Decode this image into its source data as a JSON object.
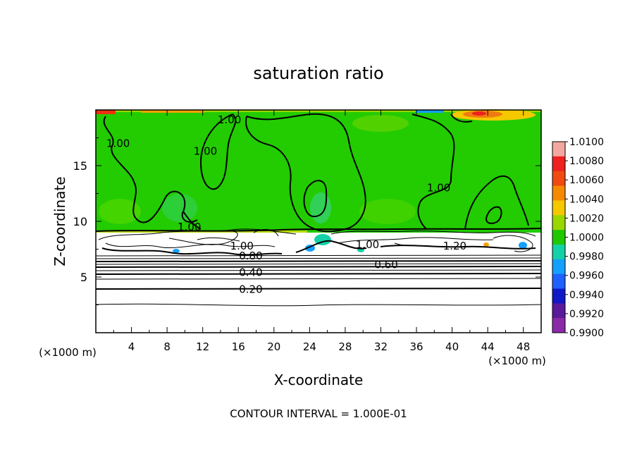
{
  "chart_data": {
    "type": "heatmap",
    "title": "saturation ratio",
    "xlabel": "X-coordinate",
    "ylabel": "Z-coordinate",
    "x_unit": "(×1000 m)",
    "y_unit": "(×1000 m)",
    "xlim": [
      0,
      50
    ],
    "ylim": [
      0,
      20
    ],
    "x_ticks": [
      "4",
      "8",
      "12",
      "16",
      "20",
      "24",
      "28",
      "32",
      "36",
      "40",
      "44",
      "48"
    ],
    "y_ticks": [
      "5",
      "10",
      "15"
    ],
    "footer": "CONTOUR INTERVAL = 1.000E-01",
    "colorbar": {
      "labels": [
        "1.0100",
        "1.0080",
        "1.0060",
        "1.0040",
        "1.0020",
        "1.0000",
        "0.9980",
        "0.9960",
        "0.9940",
        "0.9920",
        "0.9900"
      ],
      "colors": [
        "#f4a7a0",
        "#ee2020",
        "#f04a10",
        "#f58a00",
        "#f5c800",
        "#9ad700",
        "#1fc800",
        "#14d2a8",
        "#14a0ff",
        "#2060ff",
        "#1018c8",
        "#5a1a9a",
        "#8a2aa8"
      ]
    },
    "contour_labels": [
      {
        "text": "1.00",
        "x": 15.0,
        "y": 19.1
      },
      {
        "text": "1.00",
        "x": 2.5,
        "y": 17.0
      },
      {
        "text": "1.00",
        "x": 12.3,
        "y": 16.3
      },
      {
        "text": "1.00",
        "x": 38.5,
        "y": 13.0
      },
      {
        "text": "1.00",
        "x": 10.5,
        "y": 9.5
      },
      {
        "text": "1.00",
        "x": 16.4,
        "y": 7.8
      },
      {
        "text": "1.00",
        "x": 30.5,
        "y": 7.9
      },
      {
        "text": "1.20",
        "x": 40.3,
        "y": 7.8
      },
      {
        "text": "0.80",
        "x": 17.4,
        "y": 6.9
      },
      {
        "text": "0.60",
        "x": 32.6,
        "y": 6.1
      },
      {
        "text": "0.40",
        "x": 17.4,
        "y": 5.4
      },
      {
        "text": "0.20",
        "x": 17.4,
        "y": 3.9
      }
    ]
  }
}
